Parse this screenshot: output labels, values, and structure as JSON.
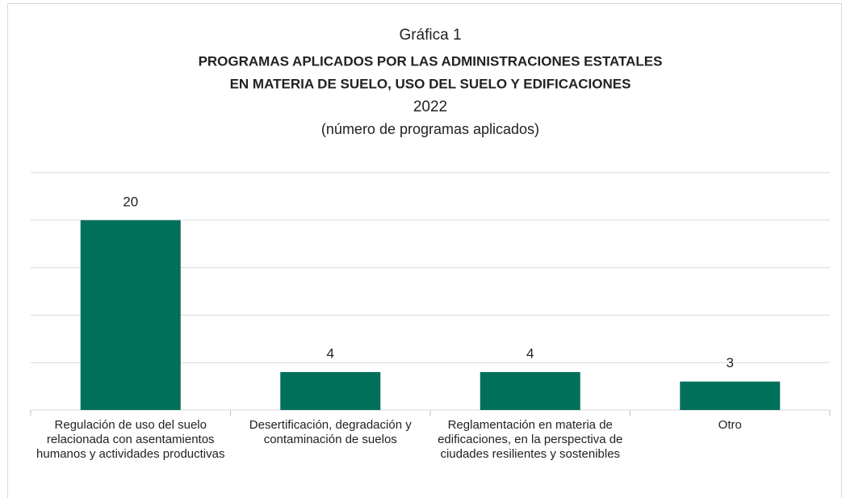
{
  "chart_data": {
    "type": "bar",
    "title": "Gráfica 1",
    "heading": [
      "PROGRAMAS APLICADOS POR LAS ADMINISTRACIONES ESTATALES",
      "EN MATERIA DE SUELO, USO DEL SUELO Y EDIFICACIONES"
    ],
    "year_label": "2022",
    "subtitle": "(número de programas aplicados)",
    "categories": [
      "Regulación de uso del suelo relacionada con asentamientos humanos y actividades productivas",
      "Desertificación, degradación y contaminación de suelos",
      "Reglamentación en materia de edificaciones, en la perspectiva de ciudades resilientes y sostenibles",
      "Otro"
    ],
    "values": [
      20,
      4,
      4,
      3
    ],
    "color": "#00705a",
    "ylim": [
      0,
      25
    ],
    "yticks": [
      0,
      5,
      10,
      15,
      20,
      25
    ],
    "grid": true
  }
}
